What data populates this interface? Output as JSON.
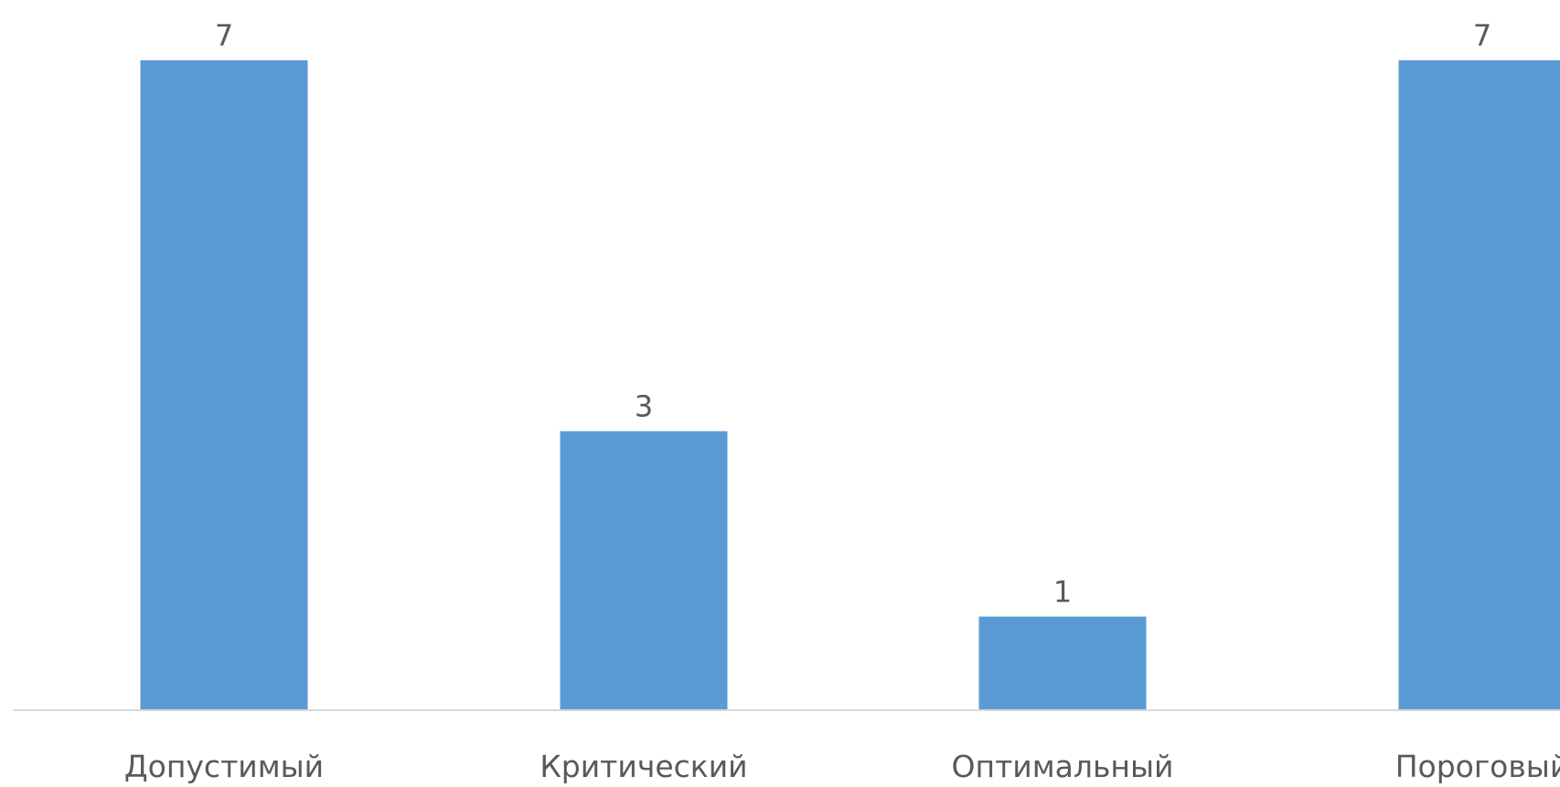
{
  "chart_data": {
    "type": "bar",
    "title": "",
    "xlabel": "",
    "ylabel": "",
    "categories": [
      "Допустимый",
      "Критический",
      "Оптимальный",
      "Пороговый"
    ],
    "values": [
      7,
      3,
      1,
      7
    ],
    "ylim": [
      0,
      7
    ],
    "grid": false,
    "legend": "none",
    "data_labels": true,
    "colors": {
      "bar": "#5B9BD5",
      "axis": "#D9D9D9",
      "text": "#595959"
    }
  }
}
